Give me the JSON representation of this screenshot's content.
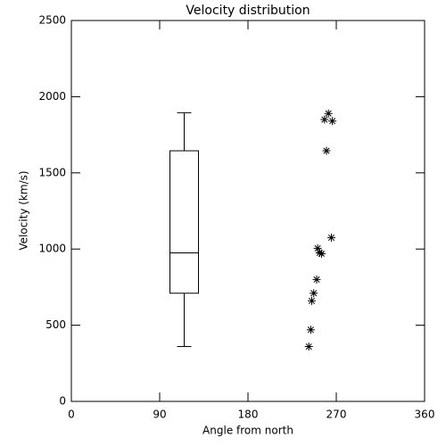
{
  "chart_data": [
    {
      "type": "box",
      "title": "Velocity distribution",
      "x_label": "Angle from north",
      "y_label": "Velocity (km/s)",
      "xlim": [
        0,
        360
      ],
      "xticks": [
        0,
        90,
        180,
        270,
        360
      ],
      "ylim": [
        0,
        2500
      ],
      "yticks": [
        0,
        500,
        1000,
        1500,
        2000,
        2500
      ],
      "x": 115,
      "whisker_low": 360,
      "q1": 710,
      "median": 975,
      "q3": 1645,
      "whisker_high": 1895,
      "color": "#000000"
    },
    {
      "type": "scatter",
      "marker": "asterisk",
      "color": "#000000",
      "x": [
        242,
        244,
        245,
        247,
        250,
        251,
        253,
        255,
        258,
        260,
        262,
        265,
        266
      ],
      "y": [
        360,
        470,
        660,
        710,
        800,
        1005,
        975,
        970,
        1850,
        1645,
        1890,
        1075,
        1840
      ]
    }
  ]
}
